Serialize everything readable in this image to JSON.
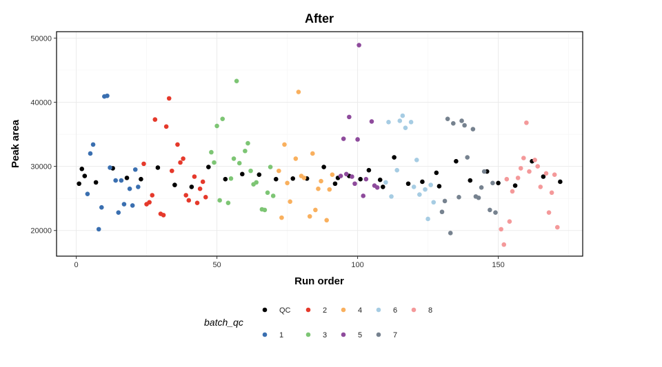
{
  "chart_data": {
    "type": "scatter",
    "title": "After",
    "xlabel": "Run order",
    "ylabel": "Peak area",
    "xlim": [
      -7,
      180
    ],
    "ylim": [
      16000,
      51000
    ],
    "x_ticks": [
      0,
      50,
      100,
      150
    ],
    "y_ticks": [
      20000,
      30000,
      40000,
      50000
    ],
    "x_tick_labels": [
      "0",
      "50",
      "100",
      "150"
    ],
    "y_tick_labels": [
      "20000",
      "30000",
      "40000",
      "50000"
    ],
    "grid": true,
    "legend": {
      "title": "batch_qc",
      "position": "bottom",
      "entries": [
        {
          "label": "QC",
          "color": "#000000"
        },
        {
          "label": "1",
          "color": "#3A6FB0"
        },
        {
          "label": "2",
          "color": "#E5392B"
        },
        {
          "label": "3",
          "color": "#7DC574"
        },
        {
          "label": "4",
          "color": "#F9B05E"
        },
        {
          "label": "5",
          "color": "#8E4B9C"
        },
        {
          "label": "6",
          "color": "#A6CCE3"
        },
        {
          "label": "7",
          "color": "#76828F"
        },
        {
          "label": "8",
          "color": "#F4999A"
        }
      ]
    },
    "series": [
      {
        "name": "QC",
        "color": "#000000",
        "points": [
          [
            1,
            27300
          ],
          [
            2,
            29600
          ],
          [
            3,
            28500
          ],
          [
            7,
            27500
          ],
          [
            13,
            29700
          ],
          [
            18,
            28200
          ],
          [
            23,
            28000
          ],
          [
            29,
            29800
          ],
          [
            35,
            27100
          ],
          [
            41,
            26800
          ],
          [
            47,
            29900
          ],
          [
            53,
            28000
          ],
          [
            59,
            28800
          ],
          [
            65,
            28700
          ],
          [
            71,
            28000
          ],
          [
            77,
            28100
          ],
          [
            82,
            28100
          ],
          [
            88,
            29900
          ],
          [
            92,
            27300
          ],
          [
            93,
            28200
          ],
          [
            97,
            28500
          ],
          [
            101,
            28000
          ],
          [
            104,
            29400
          ],
          [
            108,
            27900
          ],
          [
            109,
            26800
          ],
          [
            113,
            31400
          ],
          [
            118,
            27300
          ],
          [
            123,
            27600
          ],
          [
            128,
            29000
          ],
          [
            129,
            26900
          ],
          [
            135,
            30800
          ],
          [
            140,
            27800
          ],
          [
            146,
            29200
          ],
          [
            150,
            27400
          ],
          [
            156,
            27000
          ],
          [
            162,
            30800
          ],
          [
            166,
            28400
          ],
          [
            172,
            27600
          ]
        ]
      },
      {
        "name": "1",
        "color": "#3A6FB0",
        "points": [
          [
            4,
            25700
          ],
          [
            5,
            32000
          ],
          [
            6,
            33400
          ],
          [
            8,
            20200
          ],
          [
            9,
            23600
          ],
          [
            10,
            40900
          ],
          [
            11,
            41000
          ],
          [
            12,
            29800
          ],
          [
            14,
            27800
          ],
          [
            15,
            22800
          ],
          [
            16,
            27800
          ],
          [
            17,
            24100
          ],
          [
            19,
            26500
          ],
          [
            20,
            23900
          ],
          [
            21,
            29500
          ],
          [
            22,
            26800
          ]
        ]
      },
      {
        "name": "2",
        "color": "#E5392B",
        "points": [
          [
            24,
            30400
          ],
          [
            25,
            24100
          ],
          [
            26,
            24400
          ],
          [
            27,
            25500
          ],
          [
            28,
            37300
          ],
          [
            30,
            22600
          ],
          [
            31,
            22400
          ],
          [
            32,
            36200
          ],
          [
            33,
            40600
          ],
          [
            34,
            29300
          ],
          [
            36,
            33400
          ],
          [
            37,
            30600
          ],
          [
            38,
            31200
          ],
          [
            39,
            25500
          ],
          [
            40,
            24700
          ],
          [
            42,
            28400
          ],
          [
            43,
            24300
          ],
          [
            44,
            26500
          ],
          [
            45,
            27600
          ],
          [
            46,
            25200
          ]
        ]
      },
      {
        "name": "3",
        "color": "#7DC574",
        "points": [
          [
            48,
            32200
          ],
          [
            49,
            30600
          ],
          [
            50,
            36300
          ],
          [
            51,
            24700
          ],
          [
            52,
            37400
          ],
          [
            54,
            24300
          ],
          [
            55,
            28100
          ],
          [
            56,
            31200
          ],
          [
            57,
            43300
          ],
          [
            58,
            30500
          ],
          [
            60,
            32400
          ],
          [
            61,
            33600
          ],
          [
            62,
            29300
          ],
          [
            63,
            27200
          ],
          [
            64,
            27500
          ],
          [
            66,
            23300
          ],
          [
            67,
            23200
          ],
          [
            68,
            25900
          ],
          [
            69,
            29900
          ],
          [
            70,
            25400
          ]
        ]
      },
      {
        "name": "4",
        "color": "#F9B05E",
        "points": [
          [
            72,
            29300
          ],
          [
            73,
            22000
          ],
          [
            74,
            33400
          ],
          [
            75,
            27400
          ],
          [
            76,
            24500
          ],
          [
            78,
            31200
          ],
          [
            79,
            41600
          ],
          [
            80,
            28500
          ],
          [
            81,
            28200
          ],
          [
            83,
            22200
          ],
          [
            84,
            32000
          ],
          [
            85,
            23200
          ],
          [
            86,
            26500
          ],
          [
            87,
            27700
          ],
          [
            89,
            21600
          ],
          [
            90,
            26400
          ],
          [
            91,
            28700
          ]
        ]
      },
      {
        "name": "5",
        "color": "#8E4B9C",
        "points": [
          [
            94,
            28500
          ],
          [
            95,
            34300
          ],
          [
            96,
            28800
          ],
          [
            97,
            37700
          ],
          [
            98,
            28400
          ],
          [
            99,
            27300
          ],
          [
            100,
            34200
          ],
          [
            100.5,
            48900
          ],
          [
            102,
            25400
          ],
          [
            103,
            28000
          ],
          [
            105,
            37000
          ],
          [
            106,
            27000
          ],
          [
            107,
            26700
          ]
        ]
      },
      {
        "name": "6",
        "color": "#A6CCE3",
        "points": [
          [
            110,
            27500
          ],
          [
            111,
            36900
          ],
          [
            112,
            25300
          ],
          [
            114,
            29400
          ],
          [
            115,
            37100
          ],
          [
            116,
            37900
          ],
          [
            117,
            36000
          ],
          [
            119,
            36900
          ],
          [
            120,
            26800
          ],
          [
            121,
            31000
          ],
          [
            122,
            25600
          ],
          [
            124,
            26400
          ],
          [
            125,
            21800
          ],
          [
            126,
            27100
          ],
          [
            127,
            24400
          ]
        ]
      },
      {
        "name": "7",
        "color": "#76828F",
        "points": [
          [
            130,
            22900
          ],
          [
            131,
            24600
          ],
          [
            132,
            37400
          ],
          [
            133,
            19600
          ],
          [
            134,
            36700
          ],
          [
            136,
            25200
          ],
          [
            137,
            37100
          ],
          [
            138,
            36400
          ],
          [
            139,
            31400
          ],
          [
            141,
            35800
          ],
          [
            142,
            25300
          ],
          [
            143,
            25100
          ],
          [
            144,
            26700
          ],
          [
            145,
            29200
          ],
          [
            147,
            23200
          ],
          [
            148,
            27400
          ],
          [
            149,
            22800
          ]
        ]
      },
      {
        "name": "8",
        "color": "#F4999A",
        "points": [
          [
            151,
            20200
          ],
          [
            152,
            17800
          ],
          [
            153,
            28000
          ],
          [
            154,
            21400
          ],
          [
            155,
            26100
          ],
          [
            157,
            28200
          ],
          [
            158,
            29700
          ],
          [
            159,
            31300
          ],
          [
            160,
            36800
          ],
          [
            161,
            29200
          ],
          [
            163,
            31000
          ],
          [
            164,
            30000
          ],
          [
            165,
            26800
          ],
          [
            167,
            28900
          ],
          [
            168,
            22800
          ],
          [
            169,
            25900
          ],
          [
            170,
            28700
          ],
          [
            171,
            20500
          ]
        ]
      }
    ]
  }
}
